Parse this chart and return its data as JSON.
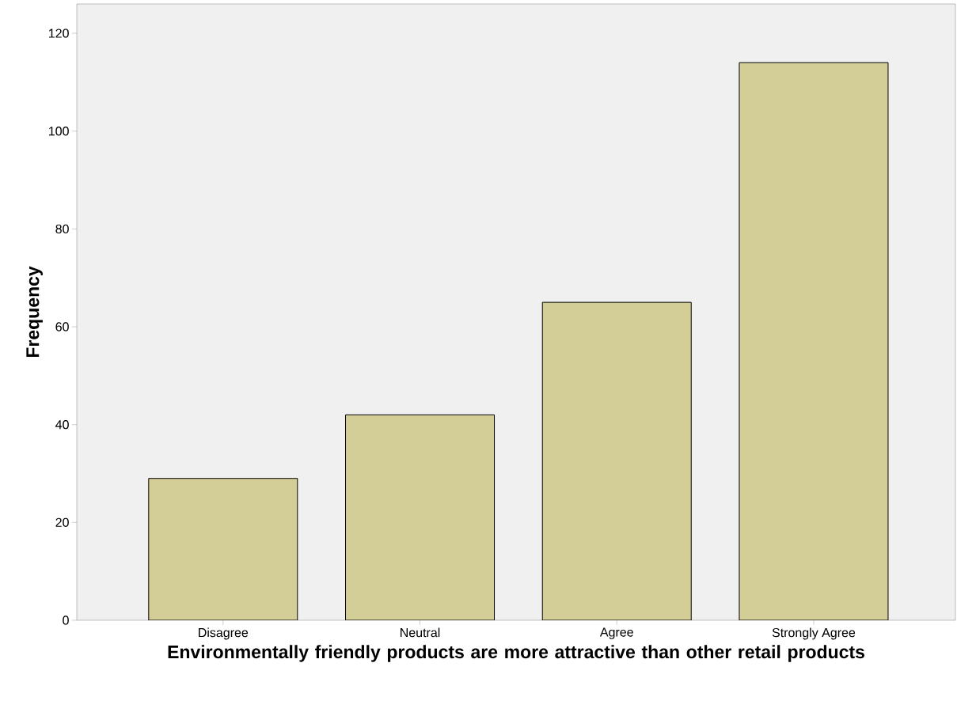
{
  "chart_data": {
    "type": "bar",
    "xlabel": "Environmentally friendly products are more attractive than other retail products",
    "ylabel": "Frequency",
    "categories": [
      "Disagree",
      "Neutral",
      "Agree",
      "Strongly Agree"
    ],
    "values": [
      29,
      42,
      65,
      114
    ],
    "color": "#d3ce97",
    "ylim": [
      0,
      126
    ],
    "yticks": [
      0,
      20,
      40,
      60,
      80,
      100,
      120
    ],
    "grid": false
  }
}
